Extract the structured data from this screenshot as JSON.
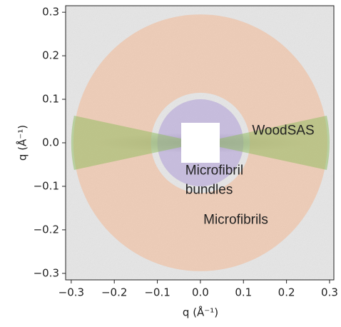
{
  "chart_data": {
    "type": "image",
    "xlabel": "q (Å⁻¹)",
    "ylabel": "q (Å⁻¹)",
    "xlim": [
      -0.313,
      0.31
    ],
    "ylim": [
      -0.315,
      0.315
    ],
    "xticks": [
      {
        "value": -0.3,
        "label": "−0.3"
      },
      {
        "value": -0.2,
        "label": "−0.2"
      },
      {
        "value": -0.1,
        "label": "−0.1"
      },
      {
        "value": 0,
        "label": "0.0"
      },
      0.1,
      0.2,
      0.3
    ],
    "yticks": [
      {
        "value": -0.3,
        "label": "−0.3"
      },
      {
        "value": -0.2,
        "label": "−0.2"
      },
      {
        "value": -0.1,
        "label": "−0.1"
      },
      {
        "value": 0,
        "label": "0.0"
      },
      0.1,
      0.2,
      0.3
    ],
    "regions": [
      {
        "shape": "ring",
        "r": [
          0.115,
          0.295
        ],
        "color": "#f3b48c"
      },
      {
        "shape": "ring",
        "r": [
          0.045,
          0.1
        ],
        "color": "#a995d6"
      },
      {
        "shape": "wedge",
        "r": [
          0.045,
          0.3
        ],
        "half_angle": 12,
        "color": "#8dbb5c"
      }
    ],
    "annotations": [
      {
        "lines": [
          "WoodSAS"
        ],
        "x": 0.12,
        "y": 0.027,
        "color": "#2e9a2e"
      },
      {
        "lines": [
          "Microfibril",
          "bundles"
        ],
        "x": -0.035,
        "y": -0.065,
        "color": "#9a6fc8"
      },
      {
        "lines": [
          "Microfibrils"
        ],
        "x": 0.007,
        "y": -0.178,
        "color": "#f08a2c"
      }
    ]
  }
}
